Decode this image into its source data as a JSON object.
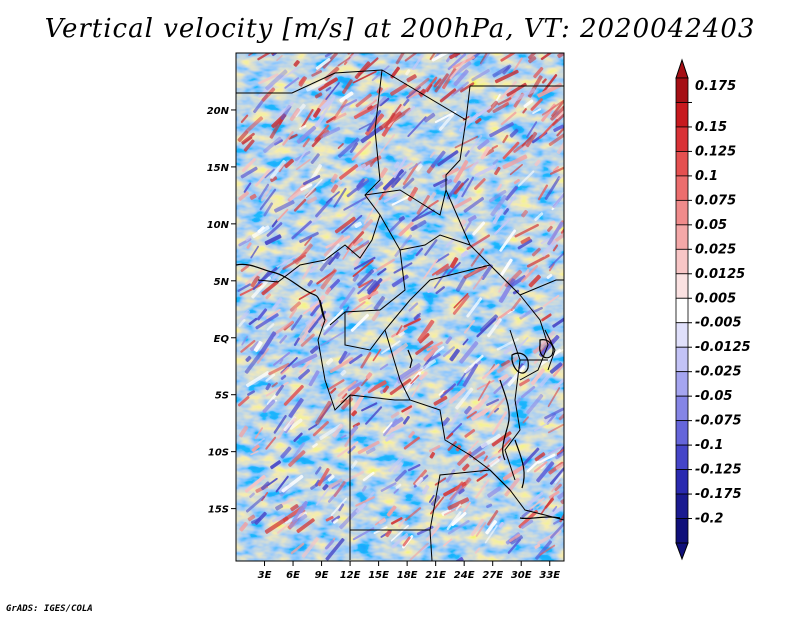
{
  "title": "Vertical velocity [m/s] at 200hPa, VT: 2020042403",
  "credit": "GrADS: IGES/COLA",
  "map": {
    "lon_ticks": [
      "3E",
      "6E",
      "9E",
      "12E",
      "15E",
      "18E",
      "21E",
      "24E",
      "27E",
      "30E",
      "33E"
    ],
    "lat_ticks": [
      "20N",
      "15N",
      "10N",
      "5N",
      "EQ",
      "5S",
      "10S",
      "15S"
    ],
    "lon_values": [
      3,
      6,
      9,
      12,
      15,
      18,
      21,
      24,
      27,
      30,
      33
    ],
    "lat_values": [
      20,
      15,
      10,
      5,
      0,
      -5,
      -10,
      -15
    ],
    "lon_range": [
      0,
      34.5
    ],
    "lat_range": [
      -19.6,
      25
    ]
  },
  "colorbar": {
    "labels": [
      "0.175",
      "0.15",
      "0.125",
      "0.1",
      "0.075",
      "0.05",
      "0.025",
      "0.0125",
      "0.005",
      "-0.005",
      "-0.0125",
      "-0.025",
      "-0.05",
      "-0.075",
      "-0.1",
      "-0.125",
      "-0.175",
      "-0.2"
    ],
    "colors": [
      "#a50f15",
      "#c7191e",
      "#d93236",
      "#e55050",
      "#ec6d6d",
      "#f08b8b",
      "#f4a8a8",
      "#f8c6c6",
      "#fbe2e2",
      "#ffffff",
      "#e0e0fb",
      "#c3c3f6",
      "#a5a5f0",
      "#8585e6",
      "#6565da",
      "#4545c8",
      "#2a2ab0",
      "#1a1a90",
      "#10107a"
    ],
    "top_color": "#a50f15",
    "bottom_color": "#10107a"
  }
}
